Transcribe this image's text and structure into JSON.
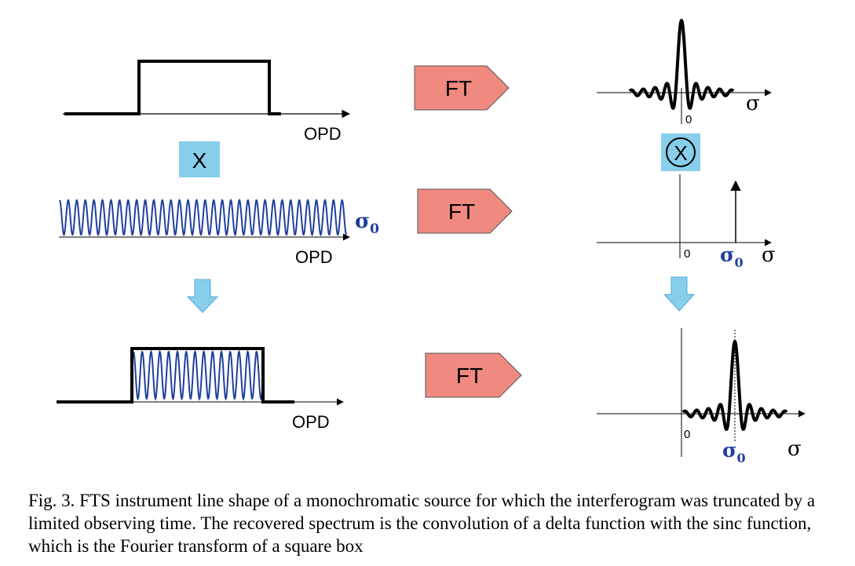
{
  "figure": {
    "opd_label": "OPD",
    "ft_label": "FT",
    "multiply_label": "X",
    "convolve_label": "X",
    "sigma_label": "σ",
    "sigma0_label": "σ",
    "sigma0_subscript": "0",
    "zero_label": "0",
    "colors": {
      "ft_box_fill": "#f08a80",
      "op_box_fill": "#87ceeb",
      "arrow_fill": "#87ceeb",
      "arrow_stroke": "#5aa8d8",
      "cosine_wave": "#1f3f9e",
      "sigma0_text": "#1f3f9e"
    }
  },
  "caption": "Fig. 3.  FTS instrument line shape of a monochromatic source for which the interferogram was truncated by a limited observing time. The recovered spectrum is the convolution of a delta function with the sinc function, which is the Fourier transform of a square box"
}
